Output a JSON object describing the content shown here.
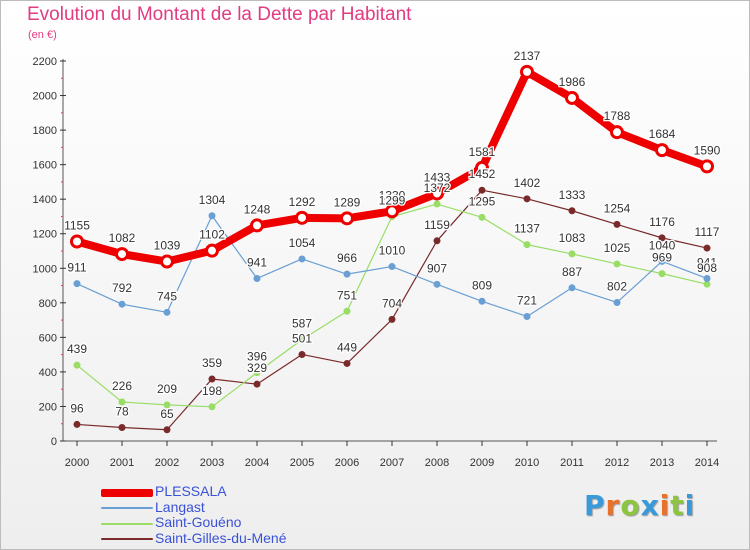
{
  "header": {
    "title": "Evolution du Montant de la Dette par Habitant",
    "subtitle": "(en €)"
  },
  "logo": {
    "text": "Proxiti",
    "colors": [
      "#3a9ad9",
      "#e8722b",
      "#8cc63f",
      "#3a9ad9",
      "#e8722b",
      "#8cc63f",
      "#3a9ad9"
    ]
  },
  "chart_data": {
    "type": "line",
    "title": "Evolution du Montant de la Dette par Habitant",
    "subtitle": "(en €)",
    "xlabel": "",
    "ylabel": "",
    "ylim": [
      0,
      2200
    ],
    "yticks": [
      0,
      200,
      400,
      600,
      800,
      1000,
      1200,
      1400,
      1600,
      1800,
      2000,
      2200
    ],
    "grid": false,
    "legend_position": "bottom-left",
    "x": [
      "2000",
      "2001",
      "2002",
      "2003",
      "2004",
      "2005",
      "2006",
      "2007",
      "2008",
      "2009",
      "2010",
      "2011",
      "2012",
      "2013",
      "2014"
    ],
    "series": [
      {
        "name": "PLESSALA",
        "color": "#ee0000",
        "values": [
          1155,
          1082,
          1039,
          1102,
          1248,
          1292,
          1289,
          1330,
          1433,
          1581,
          2137,
          1986,
          1788,
          1684,
          1590
        ]
      },
      {
        "name": "Langast",
        "color": "#6a9fd4",
        "values": [
          911,
          792,
          745,
          1304,
          941,
          1054,
          966,
          1010,
          907,
          809,
          721,
          887,
          802,
          1040,
          941
        ]
      },
      {
        "name": "Saint-Gouéno",
        "color": "#99dd66",
        "values": [
          439,
          226,
          209,
          198,
          396,
          587,
          751,
          1299,
          1372,
          1295,
          1137,
          1083,
          1025,
          969,
          908
        ]
      },
      {
        "name": "Saint-Gilles-du-Mené",
        "color": "#7a2a2a",
        "values": [
          96,
          78,
          65,
          359,
          329,
          501,
          449,
          704,
          1159,
          1452,
          1402,
          1333,
          1254,
          1176,
          1117
        ]
      }
    ]
  }
}
